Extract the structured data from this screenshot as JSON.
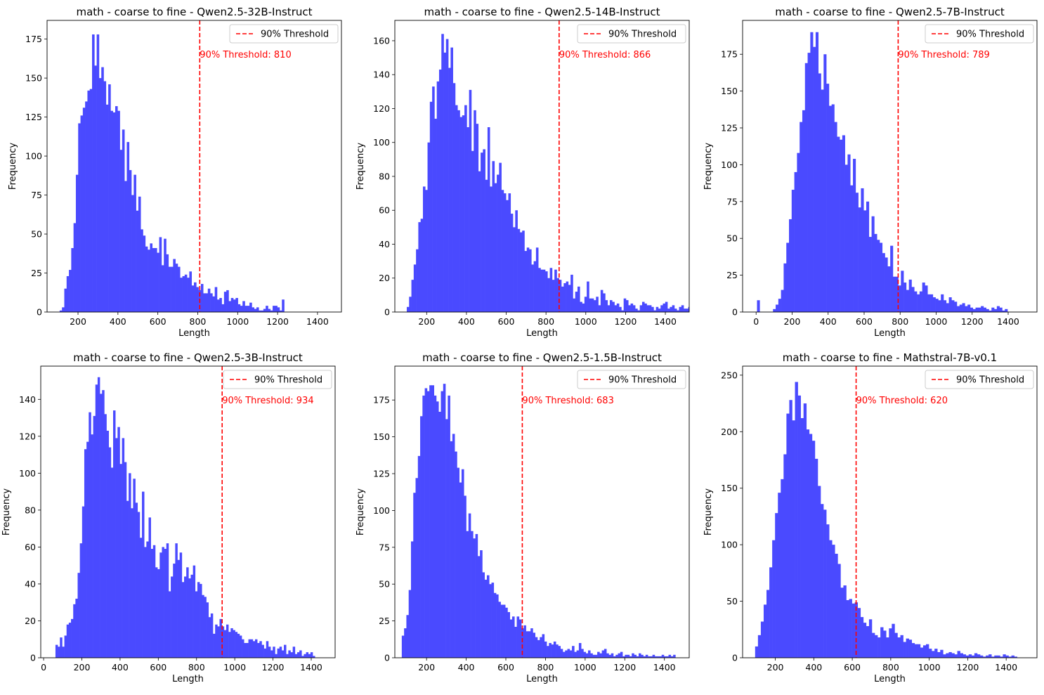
{
  "chart_data": [
    {
      "type": "bar",
      "title": "math - coarse to fine - Qwen2.5-32B-Instruct",
      "xlabel": "Length",
      "ylabel": "Frequency",
      "xlim": [
        45,
        1520
      ],
      "ylim": [
        0,
        187
      ],
      "xticks": [
        200,
        400,
        600,
        800,
        1000,
        1200,
        1400
      ],
      "yticks": [
        0,
        25,
        50,
        75,
        100,
        125,
        150,
        175
      ],
      "bin_start": 108,
      "bin_width": 11.6,
      "values": [
        1,
        3,
        15,
        23,
        27,
        41,
        57,
        88,
        121,
        126,
        131,
        135,
        142,
        143,
        178,
        158,
        178,
        150,
        157,
        148,
        133,
        146,
        129,
        128,
        132,
        129,
        104,
        117,
        84,
        109,
        91,
        75,
        88,
        65,
        74,
        53,
        49,
        42,
        40,
        44,
        41,
        41,
        38,
        48,
        30,
        47,
        37,
        29,
        29,
        34,
        31,
        29,
        22,
        23,
        24,
        22,
        26,
        17,
        19,
        16,
        14,
        18,
        12,
        12,
        15,
        12,
        10,
        16,
        8,
        9,
        5,
        13,
        14,
        7,
        9,
        8,
        9,
        5,
        4,
        7,
        4,
        4,
        6,
        3,
        2,
        3,
        1,
        1,
        2,
        4,
        2,
        1,
        4,
        4,
        3,
        1,
        8
      ],
      "threshold": 810,
      "legend": "90% Threshold",
      "threshold_label": "90% Threshold: 810",
      "bar_color": "#4a4aff",
      "threshold_color": "#ff0000"
    },
    {
      "type": "bar",
      "title": "math - coarse to fine - Qwen2.5-14B-Instruct",
      "xlabel": "Length",
      "ylabel": "Frequency",
      "xlim": [
        40,
        1520
      ],
      "ylim": [
        0,
        172
      ],
      "xticks": [
        200,
        400,
        600,
        800,
        1000,
        1200,
        1400
      ],
      "yticks": [
        0,
        20,
        40,
        60,
        80,
        100,
        120,
        140,
        160
      ],
      "bin_start": 100,
      "bin_width": 11.6,
      "values": [
        3,
        9,
        19,
        28,
        37,
        53,
        55,
        74,
        72,
        100,
        124,
        133,
        114,
        136,
        143,
        164,
        153,
        161,
        144,
        156,
        135,
        122,
        119,
        115,
        116,
        122,
        109,
        131,
        95,
        119,
        111,
        83,
        94,
        96,
        78,
        109,
        74,
        89,
        76,
        81,
        88,
        72,
        70,
        66,
        70,
        58,
        50,
        60,
        49,
        47,
        48,
        36,
        38,
        37,
        28,
        30,
        38,
        26,
        25,
        25,
        24,
        20,
        26,
        19,
        25,
        20,
        19,
        15,
        17,
        18,
        16,
        22,
        8,
        12,
        15,
        6,
        5,
        9,
        18,
        8,
        8,
        7,
        9,
        4,
        13,
        11,
        7,
        4,
        7,
        6,
        4,
        5,
        3,
        1,
        8,
        7,
        4,
        5,
        4,
        2,
        1,
        4,
        6,
        5,
        4,
        4,
        3,
        1,
        3,
        2,
        4,
        5,
        6,
        2,
        3,
        4,
        2,
        1,
        3,
        4,
        2,
        2,
        3,
        4,
        2,
        1,
        4,
        1,
        2,
        5,
        3,
        2,
        4,
        3,
        1,
        2,
        5,
        4,
        2,
        3,
        1,
        4
      ],
      "threshold": 866,
      "legend": "90% Threshold",
      "threshold_label": "90% Threshold: 866",
      "bar_color": "#4a4aff",
      "threshold_color": "#ff0000"
    },
    {
      "type": "bar",
      "title": "math - coarse to fine - Qwen2.5-7B-Instruct",
      "xlabel": "Length",
      "ylabel": "Frequency",
      "xlim": [
        -75,
        1560
      ],
      "ylim": [
        0,
        198
      ],
      "xticks": [
        0,
        200,
        400,
        600,
        800,
        1000,
        1200,
        1400
      ],
      "yticks": [
        0,
        25,
        50,
        75,
        100,
        125,
        150,
        175
      ],
      "bin_start": 5,
      "bin_width": 14.8,
      "values": [
        8,
        0,
        0,
        0,
        0,
        0,
        2,
        5,
        9,
        15,
        33,
        47,
        63,
        83,
        95,
        108,
        129,
        137,
        169,
        176,
        190,
        180,
        190,
        162,
        151,
        175,
        155,
        140,
        141,
        129,
        119,
        117,
        120,
        100,
        107,
        86,
        104,
        81,
        71,
        84,
        69,
        75,
        51,
        65,
        53,
        49,
        47,
        40,
        37,
        31,
        45,
        24,
        24,
        18,
        28,
        20,
        15,
        22,
        17,
        14,
        12,
        14,
        20,
        18,
        12,
        12,
        10,
        9,
        8,
        12,
        8,
        6,
        10,
        8,
        7,
        4,
        5,
        6,
        4,
        5,
        3,
        2,
        3,
        3,
        4,
        3,
        2,
        1,
        3,
        2,
        4,
        3,
        1,
        2
      ],
      "threshold": 789,
      "legend": "90% Threshold",
      "threshold_label": "90% Threshold: 789",
      "bar_color": "#4a4aff",
      "threshold_color": "#ff0000"
    },
    {
      "type": "bar",
      "title": "math - coarse to fine - Qwen2.5-3B-Instruct",
      "xlabel": "Length",
      "ylabel": "Frequency",
      "xlim": [
        -15,
        1525
      ],
      "ylim": [
        0,
        158
      ],
      "xticks": [
        0,
        200,
        400,
        600,
        800,
        1000,
        1200,
        1400
      ],
      "yticks": [
        0,
        20,
        40,
        60,
        80,
        100,
        120,
        140
      ],
      "bin_start": 62,
      "bin_width": 11.6,
      "values": [
        7,
        6,
        11,
        6,
        12,
        18,
        19,
        21,
        29,
        32,
        46,
        62,
        82,
        113,
        117,
        133,
        121,
        131,
        148,
        152,
        143,
        145,
        132,
        123,
        114,
        103,
        134,
        119,
        125,
        105,
        119,
        106,
        85,
        100,
        81,
        97,
        84,
        79,
        65,
        90,
        60,
        63,
        76,
        59,
        61,
        49,
        48,
        57,
        60,
        59,
        62,
        36,
        44,
        51,
        62,
        53,
        57,
        41,
        44,
        49,
        43,
        45,
        50,
        36,
        41,
        40,
        34,
        33,
        30,
        22,
        24,
        13,
        18,
        17,
        21,
        17,
        15,
        18,
        14,
        16,
        15,
        14,
        13,
        12,
        10,
        8,
        8,
        10,
        10,
        9,
        10,
        8,
        9,
        7,
        5,
        9,
        6,
        4,
        6,
        2,
        5,
        6,
        4,
        7,
        2,
        4,
        3,
        6,
        2,
        3,
        4,
        1,
        2,
        3,
        2,
        3,
        1
      ],
      "threshold": 934,
      "legend": "90% Threshold",
      "threshold_label": "90% Threshold: 934",
      "bar_color": "#4a4aff",
      "threshold_color": "#ff0000"
    },
    {
      "type": "bar",
      "title": "math - coarse to fine - Qwen2.5-1.5B-Instruct",
      "xlabel": "Length",
      "ylabel": "Frequency",
      "xlim": [
        40,
        1525
      ],
      "ylim": [
        0,
        198
      ],
      "xticks": [
        200,
        400,
        600,
        800,
        1000,
        1200,
        1400
      ],
      "yticks": [
        0,
        25,
        50,
        75,
        100,
        125,
        150,
        175
      ],
      "bin_start": 75,
      "bin_width": 11.6,
      "values": [
        15,
        20,
        29,
        46,
        79,
        112,
        122,
        137,
        164,
        178,
        183,
        181,
        185,
        185,
        178,
        174,
        167,
        181,
        186,
        162,
        178,
        147,
        152,
        140,
        129,
        119,
        128,
        110,
        86,
        98,
        86,
        81,
        84,
        69,
        73,
        58,
        53,
        56,
        50,
        51,
        44,
        43,
        38,
        36,
        36,
        34,
        31,
        26,
        28,
        21,
        28,
        26,
        20,
        22,
        18,
        18,
        20,
        17,
        14,
        12,
        14,
        16,
        11,
        8,
        10,
        9,
        11,
        9,
        8,
        6,
        4,
        5,
        6,
        5,
        8,
        4,
        5,
        10,
        6,
        4,
        3,
        5,
        3,
        2,
        2,
        4,
        3,
        5,
        6,
        3,
        2,
        3,
        1,
        2,
        3,
        4,
        1,
        2,
        2,
        1,
        3,
        2,
        1,
        3,
        2,
        1,
        2,
        1,
        1,
        2,
        1,
        1,
        1,
        2,
        1,
        1,
        2,
        1,
        2
      ],
      "threshold": 683,
      "legend": "90% Threshold",
      "threshold_label": "90% Threshold: 683",
      "bar_color": "#4a4aff",
      "threshold_color": "#ff0000"
    },
    {
      "type": "bar",
      "title": "math - coarse to fine - Mathstral-7B-v0.1",
      "xlabel": "Length",
      "ylabel": "Frequency",
      "xlim": [
        30,
        1560
      ],
      "ylim": [
        0,
        258
      ],
      "xticks": [
        200,
        400,
        600,
        800,
        1000,
        1200,
        1400
      ],
      "yticks": [
        0,
        50,
        100,
        150,
        200,
        250
      ],
      "bin_start": 95,
      "bin_width": 14.8,
      "values": [
        10,
        20,
        32,
        47,
        60,
        80,
        104,
        128,
        146,
        158,
        180,
        216,
        228,
        210,
        244,
        232,
        212,
        225,
        202,
        198,
        192,
        176,
        152,
        136,
        131,
        118,
        104,
        100,
        92,
        83,
        62,
        64,
        51,
        52,
        48,
        49,
        44,
        36,
        31,
        28,
        34,
        22,
        20,
        18,
        27,
        24,
        18,
        26,
        30,
        22,
        18,
        20,
        14,
        17,
        16,
        13,
        12,
        12,
        9,
        11,
        12,
        8,
        6,
        8,
        5,
        7,
        3,
        4,
        5,
        4,
        3,
        6,
        4,
        3,
        2,
        3,
        2,
        4,
        3,
        2,
        1,
        2,
        3,
        1,
        2,
        2,
        1,
        3,
        2,
        1,
        2,
        1
      ],
      "threshold": 620,
      "legend": "90% Threshold",
      "threshold_label": "90% Threshold: 620",
      "bar_color": "#4a4aff",
      "threshold_color": "#ff0000"
    }
  ]
}
